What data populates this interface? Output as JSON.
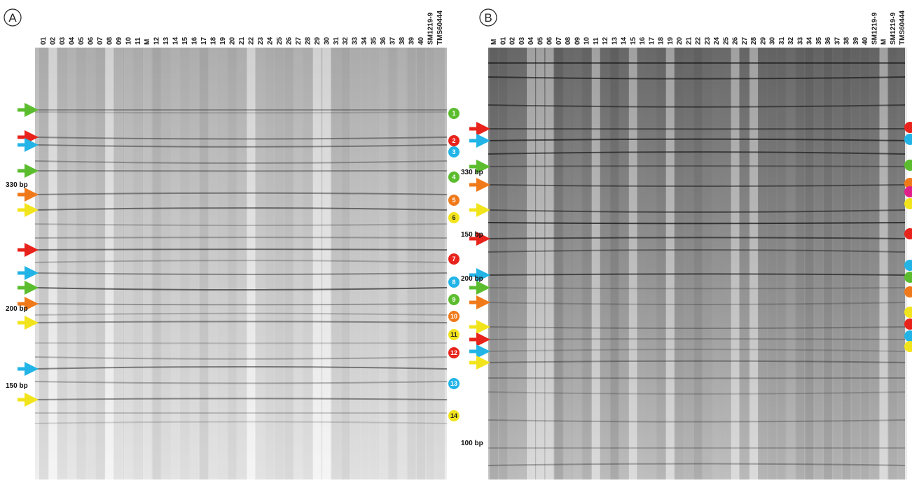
{
  "panels": [
    {
      "label": "A",
      "lanes": [
        "01",
        "02",
        "03",
        "04",
        "05",
        "06",
        "07",
        "08",
        "09",
        "10",
        "11",
        "M",
        "12",
        "13",
        "14",
        "15",
        "16",
        "17",
        "18",
        "19",
        "20",
        "21",
        "22",
        "23",
        "24",
        "25",
        "26",
        "27",
        "28",
        "29",
        "30",
        "31",
        "32",
        "33",
        "34",
        "35",
        "36",
        "37",
        "38",
        "39",
        "40",
        "SM1219-9",
        "TMS60444"
      ],
      "size_markers": [
        "330 bp",
        "200 bp",
        "150 bp"
      ],
      "bands": [
        "1",
        "2",
        "3",
        "4",
        "5",
        "6",
        "7",
        "8",
        "9",
        "10",
        "11",
        "12",
        "13",
        "14"
      ]
    },
    {
      "label": "B",
      "lanes": [
        "M",
        "01",
        "02",
        "03",
        "04",
        "05",
        "06",
        "07",
        "08",
        "09",
        "10",
        "11",
        "12",
        "13",
        "14",
        "15",
        "16",
        "17",
        "18",
        "19",
        "20",
        "21",
        "22",
        "23",
        "24",
        "25",
        "26",
        "27",
        "28",
        "29",
        "30",
        "31",
        "32",
        "33",
        "34",
        "35",
        "36",
        "37",
        "38",
        "39",
        "40",
        "SM1219-9",
        "M",
        "SM1219-9",
        "TMS60444"
      ],
      "size_markers": [
        "330 bp",
        "150 bp",
        "200 bp",
        "100 bp"
      ]
    }
  ]
}
